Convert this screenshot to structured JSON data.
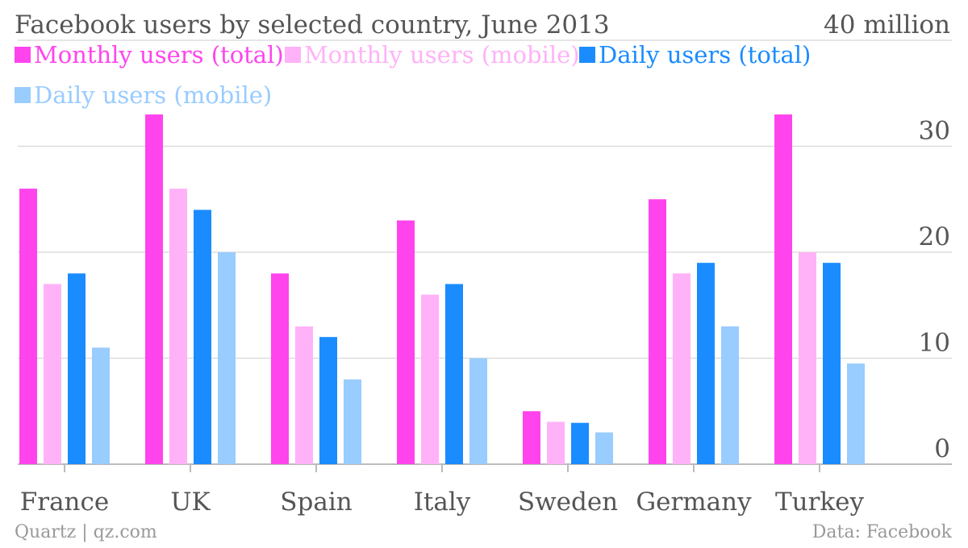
{
  "chart_data": {
    "type": "bar",
    "title": "Facebook users by selected country, June 2013",
    "y_unit_label": "40 million",
    "categories": [
      "France",
      "UK",
      "Spain",
      "Italy",
      "Sweden",
      "Germany",
      "Turkey"
    ],
    "series": [
      {
        "name": "Monthly users (total)",
        "color": "#ff44ee",
        "values": [
          26,
          33,
          18,
          23,
          5,
          25,
          33
        ]
      },
      {
        "name": "Monthly users (mobile)",
        "color": "#ffb2f8",
        "values": [
          17,
          26,
          13,
          16,
          4,
          18,
          20
        ]
      },
      {
        "name": "Daily users (total)",
        "color": "#1a8cff",
        "values": [
          18,
          24,
          12,
          17,
          3.9,
          19,
          19
        ]
      },
      {
        "name": "Daily users (mobile)",
        "color": "#99ccff",
        "values": [
          11,
          20,
          8,
          10,
          3,
          13,
          9.5
        ]
      }
    ],
    "ylim": [
      0,
      40
    ],
    "y_ticks": [
      0,
      10,
      20,
      30
    ],
    "grid": true,
    "y_axis_side": "right",
    "legend_position": "top-left",
    "xlabel": "",
    "ylabel": ""
  },
  "footer": {
    "source_left": "Quartz | qz.com",
    "source_right": "Data: Facebook"
  },
  "colors": {
    "text": "#555555",
    "grid": "#dddddd",
    "axis": "#bbbbbb",
    "footer_text": "#999999"
  }
}
